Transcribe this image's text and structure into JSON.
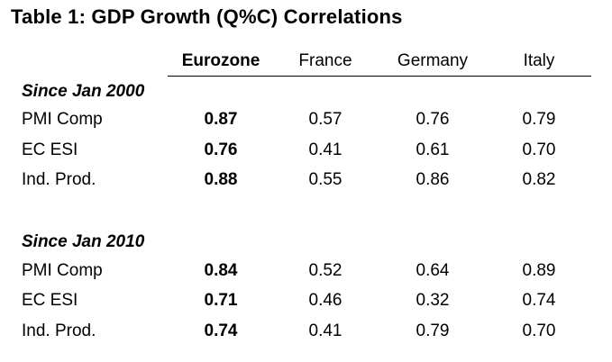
{
  "title": "Table 1: GDP Growth (Q%C) Correlations",
  "columns": [
    "Eurozone",
    "France",
    "Germany",
    "Italy"
  ],
  "sections": [
    {
      "heading": "Since Jan 2000",
      "rows": [
        {
          "label": "PMI Comp",
          "values": [
            "0.87",
            "0.57",
            "0.76",
            "0.79"
          ]
        },
        {
          "label": "EC ESI",
          "values": [
            "0.76",
            "0.41",
            "0.61",
            "0.70"
          ]
        },
        {
          "label": "Ind. Prod.",
          "values": [
            "0.88",
            "0.55",
            "0.86",
            "0.82"
          ]
        }
      ]
    },
    {
      "heading": "Since Jan 2010",
      "rows": [
        {
          "label": "PMI Comp",
          "values": [
            "0.84",
            "0.52",
            "0.64",
            "0.89"
          ]
        },
        {
          "label": "EC ESI",
          "values": [
            "0.71",
            "0.46",
            "0.32",
            "0.74"
          ]
        },
        {
          "label": "Ind. Prod.",
          "values": [
            "0.74",
            "0.41",
            "0.79",
            "0.70"
          ]
        }
      ]
    }
  ]
}
